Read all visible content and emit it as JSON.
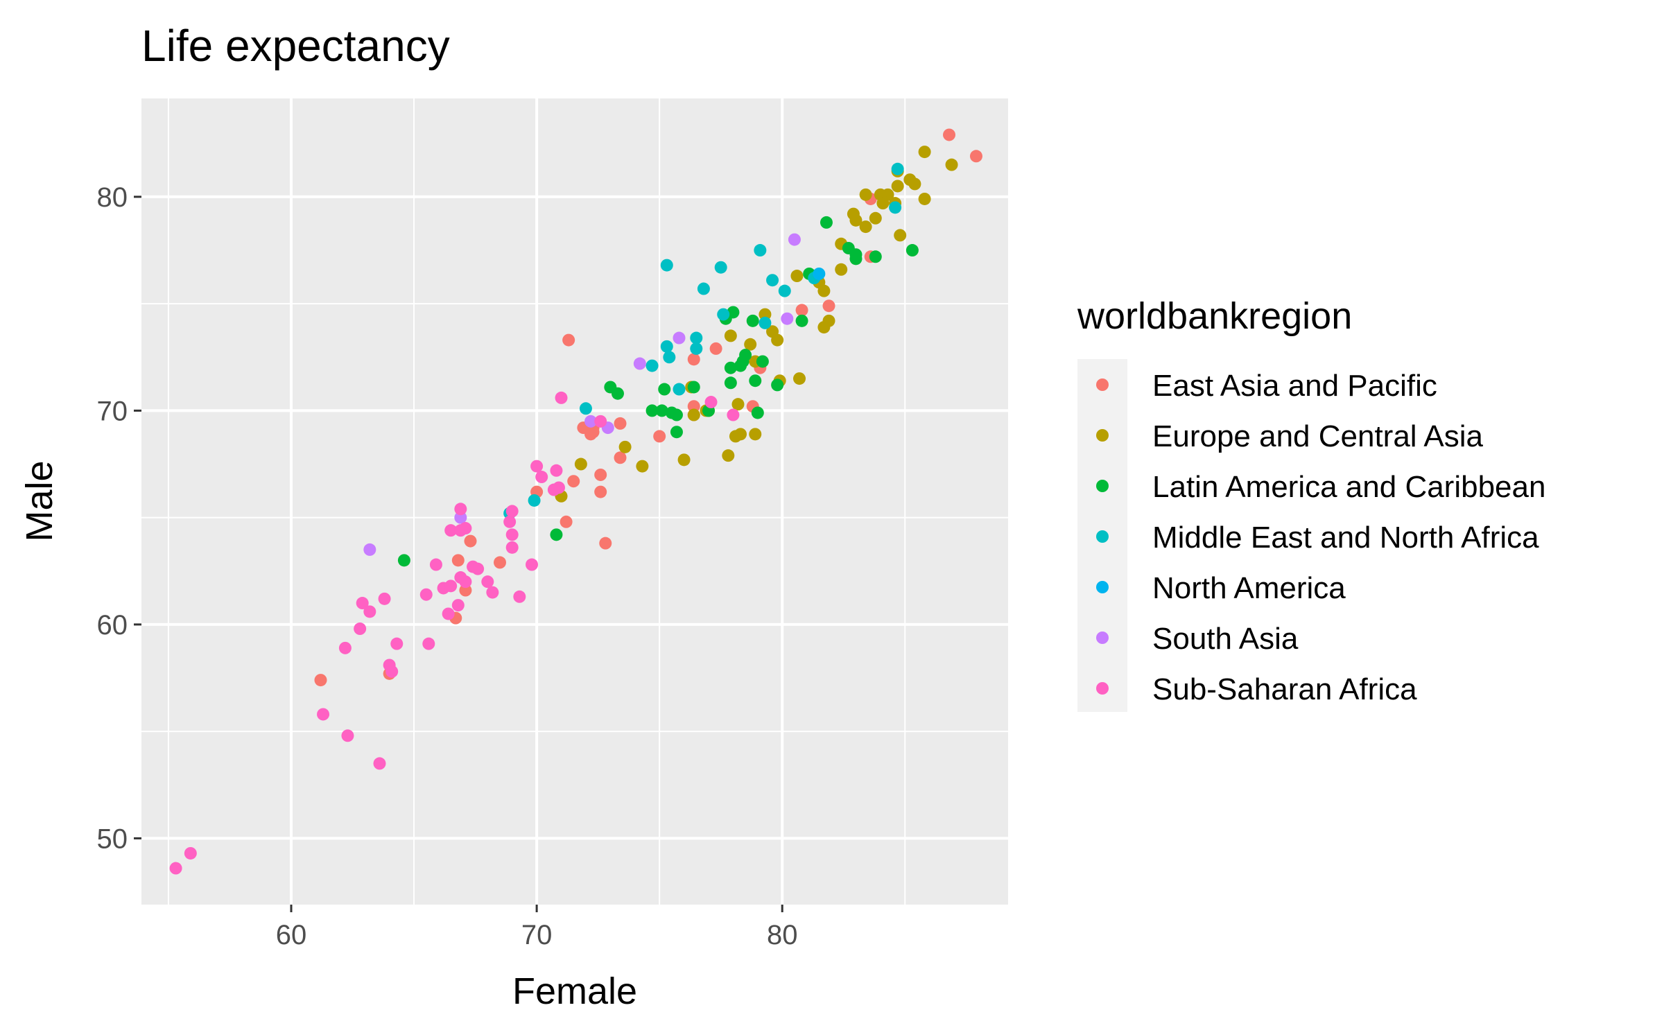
{
  "chart_data": {
    "type": "scatter",
    "title": "Life expectancy",
    "xlabel": "Female",
    "ylabel": "Male",
    "xlim": [
      53.9,
      89.2
    ],
    "ylim": [
      46.9,
      84.6
    ],
    "x_ticks": [
      60,
      70,
      80
    ],
    "y_ticks": [
      50,
      60,
      70,
      80
    ],
    "x_tick_labels": [
      "60",
      "70",
      "80"
    ],
    "y_tick_labels": [
      "50",
      "60",
      "70",
      "80"
    ],
    "grid": true,
    "legend": {
      "title": "worldbankregion",
      "position": "right"
    },
    "series": [
      {
        "name": "East Asia and Pacific",
        "color": "#F8766D",
        "points": [
          [
            86.8,
            82.9
          ],
          [
            87.9,
            81.9
          ],
          [
            83.6,
            77.2
          ],
          [
            83.6,
            79.9
          ],
          [
            81.9,
            74.9
          ],
          [
            80.8,
            74.7
          ],
          [
            77.3,
            72.9
          ],
          [
            76.4,
            72.4
          ],
          [
            79.1,
            72.0
          ],
          [
            78.8,
            70.2
          ],
          [
            76.4,
            69.8
          ],
          [
            76.4,
            70.2
          ],
          [
            75.0,
            68.8
          ],
          [
            73.4,
            69.4
          ],
          [
            72.3,
            69.2
          ],
          [
            72.3,
            69.0
          ],
          [
            72.2,
            68.9
          ],
          [
            71.9,
            69.2
          ],
          [
            71.3,
            73.3
          ],
          [
            72.6,
            67.0
          ],
          [
            71.5,
            66.7
          ],
          [
            73.4,
            67.8
          ],
          [
            72.6,
            66.2
          ],
          [
            70.0,
            66.2
          ],
          [
            71.2,
            64.8
          ],
          [
            72.8,
            63.8
          ],
          [
            68.5,
            62.9
          ],
          [
            67.3,
            63.9
          ],
          [
            66.8,
            63.0
          ],
          [
            67.1,
            61.6
          ],
          [
            66.7,
            60.3
          ],
          [
            61.2,
            57.4
          ],
          [
            64.0,
            57.7
          ]
        ]
      },
      {
        "name": "Europe and Central Asia",
        "color": "#B79F00",
        "points": [
          [
            85.8,
            82.1
          ],
          [
            86.9,
            81.5
          ],
          [
            84.7,
            81.2
          ],
          [
            85.2,
            80.8
          ],
          [
            85.4,
            80.6
          ],
          [
            84.7,
            80.5
          ],
          [
            84.3,
            80.1
          ],
          [
            85.8,
            79.9
          ],
          [
            84.6,
            79.7
          ],
          [
            84.0,
            80.1
          ],
          [
            83.4,
            80.1
          ],
          [
            84.1,
            79.7
          ],
          [
            82.9,
            79.2
          ],
          [
            83.8,
            79.0
          ],
          [
            83.0,
            78.9
          ],
          [
            83.4,
            78.6
          ],
          [
            84.8,
            78.2
          ],
          [
            82.4,
            77.8
          ],
          [
            81.3,
            76.3
          ],
          [
            81.5,
            76.0
          ],
          [
            81.7,
            75.6
          ],
          [
            82.4,
            76.6
          ],
          [
            80.6,
            76.3
          ],
          [
            81.9,
            74.2
          ],
          [
            81.7,
            73.9
          ],
          [
            79.3,
            74.5
          ],
          [
            79.6,
            73.7
          ],
          [
            77.9,
            73.5
          ],
          [
            79.8,
            73.3
          ],
          [
            78.7,
            73.1
          ],
          [
            78.9,
            72.3
          ],
          [
            80.7,
            71.5
          ],
          [
            79.9,
            71.4
          ],
          [
            76.3,
            71.1
          ],
          [
            77.0,
            70.0
          ],
          [
            76.9,
            70.0
          ],
          [
            76.4,
            69.8
          ],
          [
            78.2,
            70.3
          ],
          [
            78.3,
            68.9
          ],
          [
            78.9,
            68.9
          ],
          [
            78.1,
            68.8
          ],
          [
            73.6,
            68.3
          ],
          [
            77.8,
            67.9
          ],
          [
            76.0,
            67.7
          ],
          [
            74.3,
            67.4
          ],
          [
            71.8,
            67.5
          ],
          [
            71.0,
            66.0
          ]
        ]
      },
      {
        "name": "Latin America and Caribbean",
        "color": "#00BA38",
        "points": [
          [
            85.3,
            77.5
          ],
          [
            83.8,
            77.2
          ],
          [
            82.7,
            77.6
          ],
          [
            83.0,
            77.3
          ],
          [
            83.0,
            77.1
          ],
          [
            81.8,
            78.8
          ],
          [
            81.1,
            76.4
          ],
          [
            80.8,
            74.2
          ],
          [
            78.0,
            74.6
          ],
          [
            77.7,
            74.3
          ],
          [
            78.8,
            74.2
          ],
          [
            78.5,
            72.6
          ],
          [
            78.4,
            72.3
          ],
          [
            78.3,
            72.1
          ],
          [
            79.2,
            72.3
          ],
          [
            77.9,
            72.0
          ],
          [
            78.9,
            71.4
          ],
          [
            77.9,
            71.3
          ],
          [
            79.8,
            71.2
          ],
          [
            76.4,
            71.1
          ],
          [
            75.2,
            71.0
          ],
          [
            73.0,
            71.1
          ],
          [
            73.3,
            70.8
          ],
          [
            75.5,
            69.9
          ],
          [
            75.7,
            69.8
          ],
          [
            74.7,
            70.0
          ],
          [
            75.1,
            70.0
          ],
          [
            77.0,
            70.0
          ],
          [
            79.0,
            69.9
          ],
          [
            75.7,
            69.0
          ],
          [
            64.6,
            63.0
          ],
          [
            70.8,
            64.2
          ]
        ]
      },
      {
        "name": "Middle East and North Africa",
        "color": "#00BFC4",
        "points": [
          [
            84.7,
            81.3
          ],
          [
            84.6,
            79.5
          ],
          [
            81.3,
            76.2
          ],
          [
            80.1,
            75.6
          ],
          [
            79.6,
            76.1
          ],
          [
            79.1,
            77.5
          ],
          [
            77.5,
            76.7
          ],
          [
            76.8,
            75.7
          ],
          [
            75.3,
            76.8
          ],
          [
            79.3,
            74.1
          ],
          [
            77.6,
            74.5
          ],
          [
            76.5,
            73.4
          ],
          [
            76.5,
            72.9
          ],
          [
            75.3,
            73.0
          ],
          [
            75.4,
            72.5
          ],
          [
            74.7,
            72.1
          ],
          [
            75.8,
            71.0
          ],
          [
            72.0,
            70.1
          ],
          [
            68.9,
            65.2
          ],
          [
            69.9,
            65.8
          ]
        ]
      },
      {
        "name": "North America",
        "color": "#00B4EF",
        "points": [
          [
            81.5,
            76.4
          ]
        ]
      },
      {
        "name": "South Asia",
        "color": "#C77CFF",
        "points": [
          [
            80.5,
            78.0
          ],
          [
            80.2,
            74.3
          ],
          [
            75.8,
            73.4
          ],
          [
            74.2,
            72.2
          ],
          [
            72.2,
            69.5
          ],
          [
            72.9,
            69.2
          ],
          [
            66.9,
            65.0
          ],
          [
            63.2,
            63.5
          ]
        ]
      },
      {
        "name": "Sub-Saharan Africa",
        "color": "#FF61C3",
        "points": [
          [
            77.1,
            70.4
          ],
          [
            78.0,
            69.8
          ],
          [
            72.6,
            69.5
          ],
          [
            71.0,
            70.6
          ],
          [
            70.0,
            67.4
          ],
          [
            70.8,
            67.2
          ],
          [
            70.2,
            66.9
          ],
          [
            70.7,
            66.3
          ],
          [
            70.9,
            66.4
          ],
          [
            69.0,
            65.3
          ],
          [
            68.9,
            64.8
          ],
          [
            69.0,
            64.2
          ],
          [
            69.0,
            63.6
          ],
          [
            69.8,
            62.8
          ],
          [
            69.3,
            61.3
          ],
          [
            66.9,
            65.4
          ],
          [
            67.1,
            64.5
          ],
          [
            66.5,
            64.4
          ],
          [
            66.9,
            64.4
          ],
          [
            67.4,
            62.7
          ],
          [
            67.6,
            62.6
          ],
          [
            68.0,
            62.0
          ],
          [
            68.2,
            61.5
          ],
          [
            66.9,
            62.2
          ],
          [
            67.1,
            62.0
          ],
          [
            66.2,
            61.7
          ],
          [
            66.5,
            61.8
          ],
          [
            65.9,
            62.8
          ],
          [
            65.5,
            61.4
          ],
          [
            66.8,
            60.9
          ],
          [
            66.4,
            60.5
          ],
          [
            63.8,
            61.2
          ],
          [
            62.9,
            61.0
          ],
          [
            63.2,
            60.6
          ],
          [
            62.8,
            59.8
          ],
          [
            62.2,
            58.9
          ],
          [
            64.3,
            59.1
          ],
          [
            65.6,
            59.1
          ],
          [
            64.0,
            58.1
          ],
          [
            64.1,
            57.8
          ],
          [
            61.3,
            55.8
          ],
          [
            62.3,
            54.8
          ],
          [
            63.6,
            53.5
          ],
          [
            55.9,
            49.3
          ],
          [
            55.3,
            48.6
          ]
        ]
      }
    ]
  }
}
